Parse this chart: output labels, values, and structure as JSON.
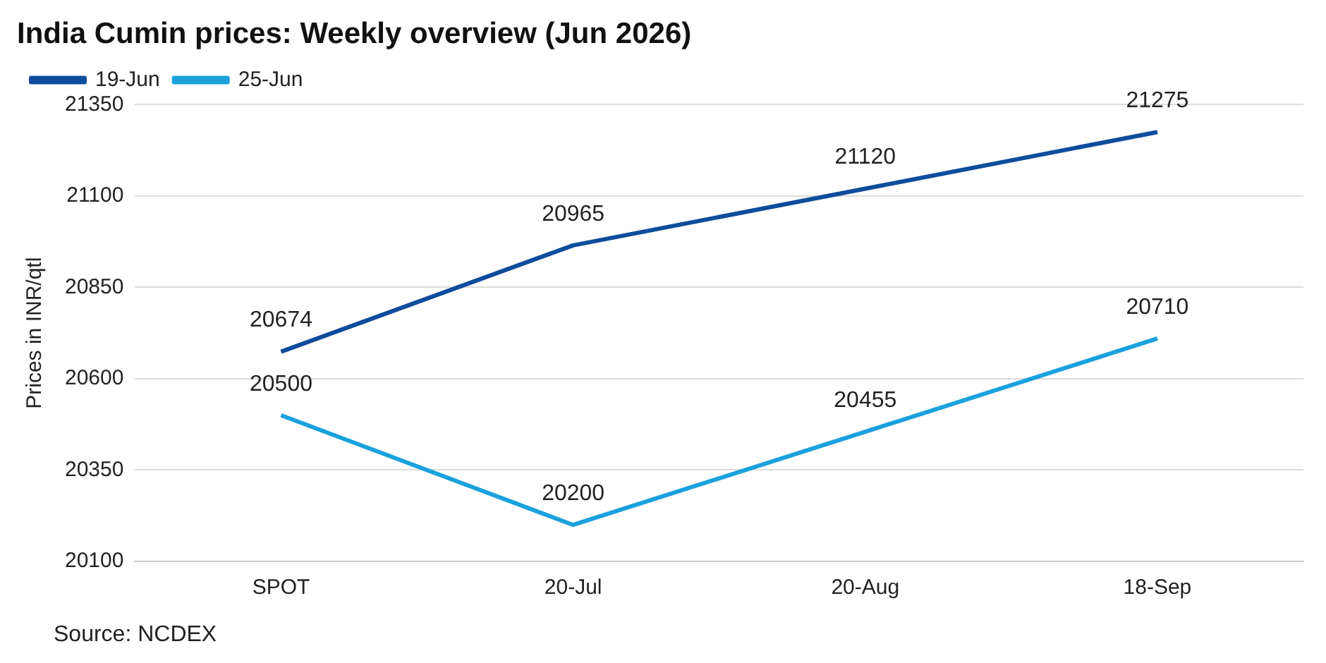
{
  "chart_data": {
    "type": "line",
    "title": "India Cumin prices: Weekly overview (Jun 2026)",
    "ylabel": "Prices in INR/qtl",
    "categories": [
      "SPOT",
      "20-Jul",
      "20-Aug",
      "18-Sep"
    ],
    "series": [
      {
        "name": "19-Jun",
        "color": "#0e4d9c",
        "values": [
          20674,
          20965,
          21120,
          21275
        ]
      },
      {
        "name": "25-Jun",
        "color": "#1ba1dd",
        "values": [
          20500,
          20200,
          20455,
          20710
        ]
      }
    ],
    "ylim": [
      20100,
      21350
    ],
    "yticks": [
      20100,
      20350,
      20600,
      20850,
      21100,
      21350
    ],
    "grid": "y",
    "legend": "top left",
    "data_labels": true,
    "marker": "none",
    "line_style": "solid",
    "annotations": [
      "Source: NCDEX"
    ]
  }
}
